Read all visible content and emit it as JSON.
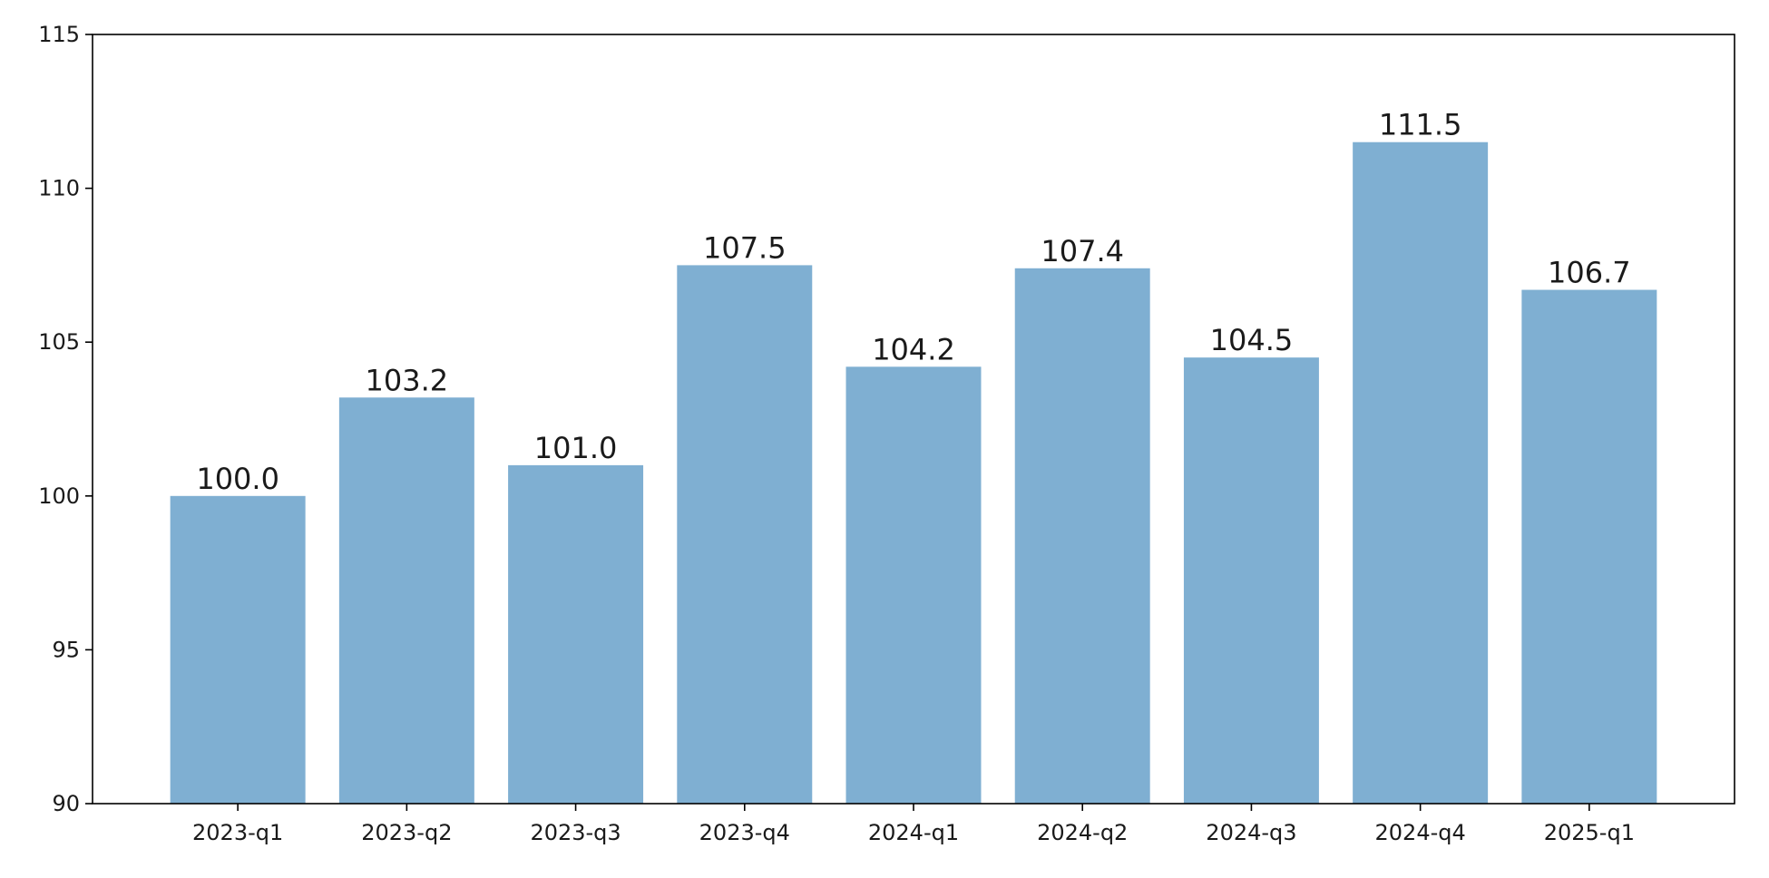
{
  "chart_data": {
    "type": "bar",
    "title": "",
    "xlabel": "",
    "ylabel": "",
    "categories": [
      "2023-q1",
      "2023-q2",
      "2023-q3",
      "2023-q4",
      "2024-q1",
      "2024-q2",
      "2024-q3",
      "2024-q4",
      "2025-q1"
    ],
    "values": [
      100.0,
      103.2,
      101.0,
      107.5,
      104.2,
      107.4,
      104.5,
      111.5,
      106.7
    ],
    "data_labels": [
      "100.0",
      "103.2",
      "101.0",
      "107.5",
      "104.2",
      "107.4",
      "104.5",
      "111.5",
      "106.7"
    ],
    "ylim": [
      90,
      115
    ],
    "yticks": [
      90,
      95,
      100,
      105,
      110,
      115
    ],
    "ytick_labels": [
      "90",
      "95",
      "100",
      "105",
      "110",
      "115"
    ],
    "grid": false,
    "legend": "none",
    "bar_color": "#7fafd2"
  }
}
